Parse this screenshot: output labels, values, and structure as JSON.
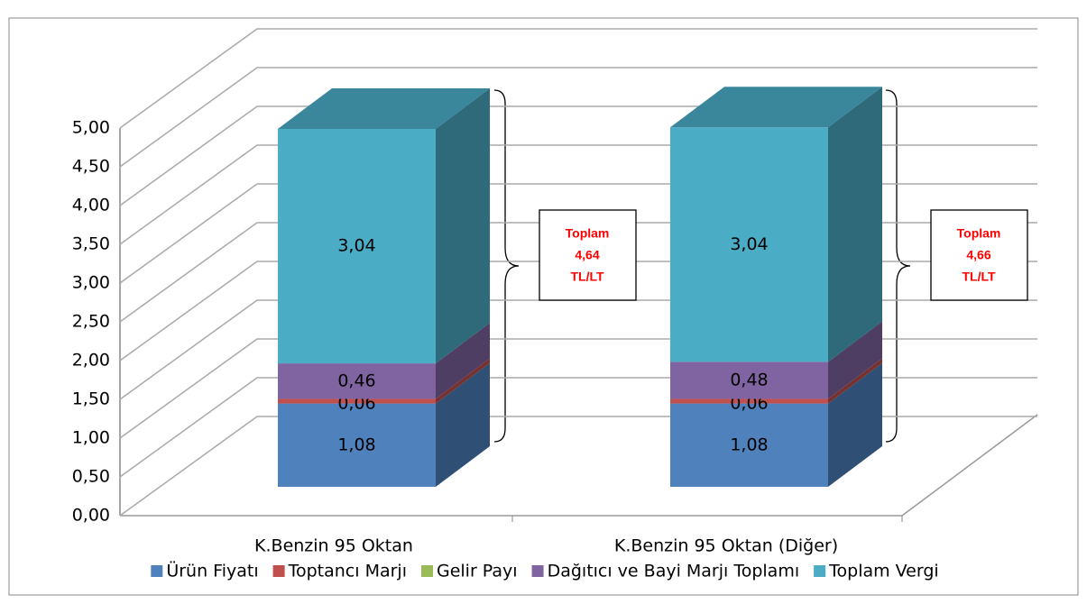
{
  "chart_data": {
    "type": "bar",
    "stacked": true,
    "categories": [
      "K.Benzin 95 Oktan",
      "K.Benzin 95 Oktan (Diğer)"
    ],
    "series": [
      {
        "name": "Ürün Fiyatı",
        "color": "#4f81bd",
        "values": [
          1.08,
          1.08
        ],
        "value_labels": [
          "1,08",
          "1,08"
        ]
      },
      {
        "name": "Toptancı Marjı",
        "color": "#c0504d",
        "values": [
          0.06,
          0.06
        ],
        "value_labels": [
          "0,06",
          "0,06"
        ]
      },
      {
        "name": "Gelir Payı",
        "color": "#9bbb59",
        "values": [
          0,
          0
        ]
      },
      {
        "name": "Dağıtıcı ve Bayi Marjı Toplamı",
        "color": "#8064a2",
        "values": [
          0.46,
          0.48
        ],
        "value_labels": [
          "0,46",
          "0,48"
        ]
      },
      {
        "name": "Toplam Vergi",
        "color": "#4bacc6",
        "values": [
          3.04,
          3.04
        ],
        "value_labels": [
          "3,04",
          "3,04"
        ]
      }
    ],
    "ylim": [
      0,
      5
    ],
    "yticks": [
      {
        "value": 0,
        "label": "0,00"
      },
      {
        "value": 0.5,
        "label": "0,50"
      },
      {
        "value": 1,
        "label": "1,00"
      },
      {
        "value": 1.5,
        "label": "1,50"
      },
      {
        "value": 2,
        "label": "2,00"
      },
      {
        "value": 2.5,
        "label": "2,50"
      },
      {
        "value": 3,
        "label": "3,00"
      },
      {
        "value": 3.5,
        "label": "3,50"
      },
      {
        "value": 4,
        "label": "4,00"
      },
      {
        "value": 4.5,
        "label": "4,50"
      },
      {
        "value": 5,
        "label": "5,00"
      }
    ],
    "grid": true,
    "legend": "bottom",
    "annotations": [
      {
        "lines": [
          "Toplam",
          "4,64",
          "TL/LT"
        ]
      },
      {
        "lines": [
          "Toplam",
          "4,66",
          "TL/LT"
        ]
      }
    ]
  }
}
